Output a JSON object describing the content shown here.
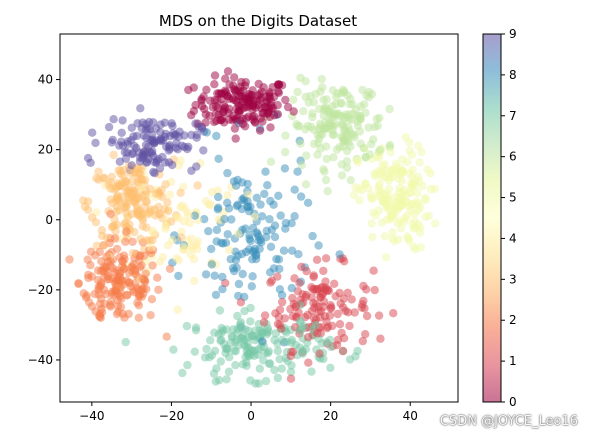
{
  "chart_data": {
    "type": "scatter",
    "title": "MDS on the Digits Dataset",
    "xlabel": "",
    "ylabel": "",
    "xlim": [
      -48,
      52
    ],
    "ylim": [
      -52,
      53
    ],
    "xticks": [
      -40,
      -20,
      0,
      20,
      40
    ],
    "yticks": [
      -40,
      -20,
      0,
      20,
      40
    ],
    "colorbar": {
      "min": 0,
      "max": 9,
      "ticks": [
        0,
        1,
        2,
        3,
        4,
        5,
        6,
        7,
        8,
        9
      ],
      "colormap": "Spectral",
      "colors": [
        "#9e0142",
        "#d53e4f",
        "#f46d43",
        "#fdae61",
        "#fee08b",
        "#ffffbf",
        "#e6f598",
        "#abdda4",
        "#66c2a5",
        "#3288bd",
        "#5e4fa2"
      ]
    },
    "marker_alpha": 0.5,
    "clusters": [
      {
        "label": 0,
        "center": [
          -2,
          33
        ],
        "spread": [
          8,
          5
        ],
        "count": 170
      },
      {
        "label": 1,
        "center": [
          17,
          -25
        ],
        "spread": [
          9,
          8
        ],
        "count": 140
      },
      {
        "label": 2,
        "center": [
          -33,
          -18
        ],
        "spread": [
          7,
          8
        ],
        "count": 170
      },
      {
        "label": 3,
        "center": [
          -30,
          5
        ],
        "spread": [
          7,
          8
        ],
        "count": 170
      },
      {
        "label": 4,
        "center": [
          -17,
          0
        ],
        "spread": [
          10,
          12
        ],
        "count": 80
      },
      {
        "label": 5,
        "center": [
          36,
          6
        ],
        "spread": [
          6,
          10
        ],
        "count": 170
      },
      {
        "label": 6,
        "center": [
          22,
          27
        ],
        "spread": [
          8,
          8
        ],
        "count": 170
      },
      {
        "label": 7,
        "center": [
          2,
          -36
        ],
        "spread": [
          12,
          6
        ],
        "count": 170
      },
      {
        "label": 8,
        "center": [
          0,
          -5
        ],
        "spread": [
          10,
          16
        ],
        "count": 140
      },
      {
        "label": 9,
        "center": [
          -25,
          22
        ],
        "spread": [
          8,
          5
        ],
        "count": 120
      }
    ],
    "grid": false,
    "legend": "colorbar-right"
  },
  "watermark": "CSDN @JOYCE_Leo16"
}
